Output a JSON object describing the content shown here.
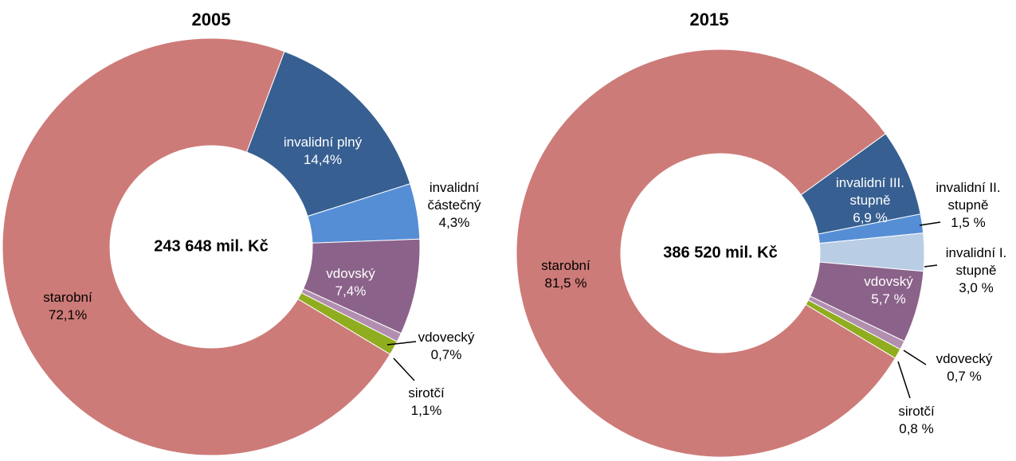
{
  "chart_data": [
    {
      "type": "donut",
      "title": "2005",
      "center_label": "243 648 mil. Kč",
      "categories": [
        "starobní",
        "invalidní plný",
        "invalidní částečný",
        "vdovský",
        "vdovecký",
        "sirotčí"
      ],
      "values": [
        72.1,
        14.4,
        4.3,
        7.4,
        0.7,
        1.1
      ],
      "value_labels": [
        "72,1%",
        "14,4%",
        "4,3%",
        "7,4%",
        "0,7%",
        "1,1%"
      ],
      "colors": [
        "#cd7b78",
        "#375f91",
        "#558ed5",
        "#8b6289",
        "#b28fb1",
        "#8fad1f"
      ]
    },
    {
      "type": "donut",
      "title": "2015",
      "center_label": "386 520 mil. Kč",
      "categories": [
        "starobní",
        "invalidní III. stupně",
        "invalidní II. stupně",
        "invalidní I. stupně",
        "vdovský",
        "vdovecký",
        "sirotčí"
      ],
      "values": [
        81.5,
        6.9,
        1.5,
        3.0,
        5.7,
        0.7,
        0.8
      ],
      "value_labels": [
        "81,5 %",
        "6,9 %",
        "1,5 %",
        "3,0 %",
        "5,7 %",
        "0,7 %",
        "0,8 %"
      ],
      "colors": [
        "#cd7b78",
        "#375f91",
        "#558ed5",
        "#b9cde5",
        "#8b6289",
        "#b28fb1",
        "#8fad1f"
      ]
    }
  ]
}
